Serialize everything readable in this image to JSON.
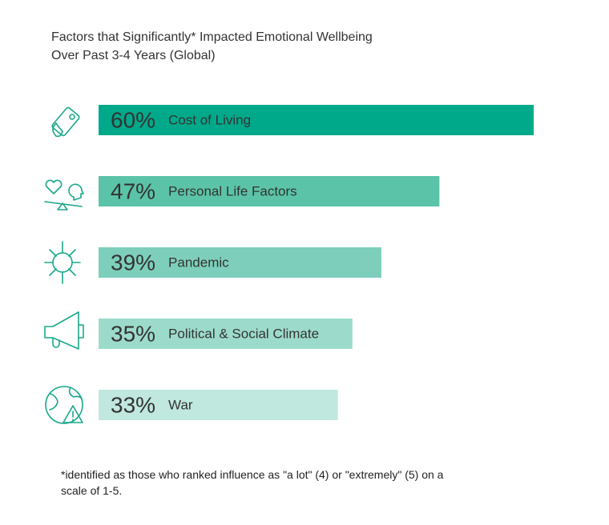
{
  "chart_data": {
    "type": "bar",
    "orientation": "horizontal",
    "title": "Factors that Significantly* Impacted Emotional Wellbeing",
    "subtitle": "Over Past 3-4 Years (Global)",
    "categories": [
      "Cost of Living",
      "Personal Life Factors",
      "Pandemic",
      "Political & Social Climate",
      "War"
    ],
    "values": [
      60,
      47,
      39,
      35,
      33
    ],
    "value_labels": [
      "60%",
      "47%",
      "39%",
      "35%",
      "33%"
    ],
    "colors": [
      "#00a98a",
      "#5bc3a8",
      "#7dcfbb",
      "#9cdbcb",
      "#c0e8de"
    ],
    "footnote": "*identified as those who ranked influence as \"a lot\" (4) or \"extremely\" (5) on a scale of 1-5."
  }
}
